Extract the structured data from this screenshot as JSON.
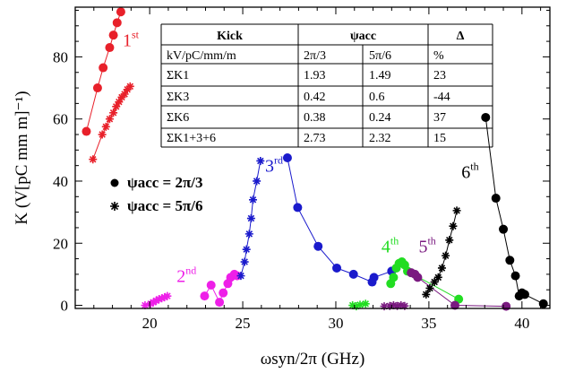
{
  "chart_data": {
    "type": "scatter",
    "xlabel": "ωsyn/2π (GHz)",
    "ylabel": "K (V[pC mm m]⁻¹)",
    "xlim": [
      16,
      41.5
    ],
    "ylim": [
      -1,
      96
    ],
    "xticks": [
      "20",
      "25",
      "30",
      "35",
      "40"
    ],
    "yticks": [
      "0",
      "20",
      "40",
      "60",
      "80"
    ],
    "legend": [
      {
        "marker": "dot",
        "label": "ψacc = 2π/3"
      },
      {
        "marker": "star",
        "label": "ψacc = 5π/6"
      }
    ],
    "mode_labels": [
      {
        "text": "1",
        "sup": "st",
        "color": "#e8202a",
        "x": 18.55,
        "y": 83.5
      },
      {
        "text": "2",
        "sup": "nd",
        "color": "#ee1fe8",
        "x": 21.45,
        "y": 7.5
      },
      {
        "text": "3",
        "sup": "rd",
        "color": "#1a1acc",
        "x": 26.2,
        "y": 43
      },
      {
        "text": "4",
        "sup": "th",
        "color": "#22dd22",
        "x": 32.45,
        "y": 17
      },
      {
        "text": "5",
        "sup": "th",
        "color": "#7a1a80",
        "x": 34.45,
        "y": 17
      },
      {
        "text": "6",
        "sup": "th",
        "color": "#000000",
        "x": 36.75,
        "y": 41
      }
    ],
    "series": [
      {
        "color": "#e8202a",
        "marker": "dot",
        "points": [
          [
            16.6,
            56
          ],
          [
            17.2,
            70
          ],
          [
            17.5,
            76.5
          ],
          [
            17.85,
            83
          ],
          [
            18.05,
            87
          ],
          [
            18.25,
            91
          ],
          [
            18.45,
            94.5
          ]
        ]
      },
      {
        "color": "#e8202a",
        "marker": "star",
        "points": [
          [
            16.95,
            47
          ],
          [
            17.45,
            55
          ],
          [
            17.65,
            57.5
          ],
          [
            17.85,
            60
          ],
          [
            18.05,
            62
          ],
          [
            18.2,
            64
          ],
          [
            18.35,
            65.5
          ],
          [
            18.5,
            67
          ],
          [
            18.65,
            68
          ],
          [
            18.8,
            69.5
          ],
          [
            18.95,
            70.5
          ]
        ]
      },
      {
        "color": "#ee1fe8",
        "marker": "dot",
        "points": [
          [
            22.95,
            3
          ],
          [
            23.3,
            6.5
          ],
          [
            23.75,
            1
          ],
          [
            23.95,
            4
          ],
          [
            24.2,
            7
          ],
          [
            24.35,
            9
          ],
          [
            24.55,
            10
          ],
          [
            24.7,
            9.5
          ]
        ]
      },
      {
        "color": "#ee1fe8",
        "marker": "star",
        "points": [
          [
            19.75,
            0
          ],
          [
            20.05,
            0.5
          ],
          [
            20.2,
            1
          ],
          [
            20.35,
            1.5
          ],
          [
            20.5,
            2
          ],
          [
            20.65,
            2.3
          ],
          [
            20.8,
            2.6
          ],
          [
            20.95,
            3
          ]
        ]
      },
      {
        "color": "#1a1acc",
        "marker": "dot",
        "points": [
          [
            27.4,
            47.5
          ],
          [
            27.95,
            31.5
          ],
          [
            29.05,
            19
          ],
          [
            30.05,
            12
          ],
          [
            30.95,
            10
          ],
          [
            31.95,
            7.5
          ],
          [
            32.05,
            9
          ],
          [
            33.0,
            11
          ]
        ]
      },
      {
        "color": "#1a1acc",
        "marker": "star",
        "points": [
          [
            24.9,
            9.5
          ],
          [
            25.1,
            14
          ],
          [
            25.2,
            18
          ],
          [
            25.35,
            23
          ],
          [
            25.45,
            28
          ],
          [
            25.55,
            34
          ],
          [
            25.75,
            40
          ],
          [
            25.95,
            46.5
          ]
        ]
      },
      {
        "color": "#22dd22",
        "marker": "dot",
        "points": [
          [
            32.95,
            7
          ],
          [
            33.1,
            9
          ],
          [
            33.25,
            12
          ],
          [
            33.4,
            13.5
          ],
          [
            33.55,
            14
          ],
          [
            33.7,
            13
          ],
          [
            33.85,
            11
          ],
          [
            36.6,
            2
          ]
        ]
      },
      {
        "color": "#22dd22",
        "marker": "star",
        "points": [
          [
            30.9,
            0
          ],
          [
            31.1,
            -0.3
          ],
          [
            31.3,
            0.2
          ],
          [
            31.6,
            0.5
          ]
        ]
      },
      {
        "color": "#7a1a80",
        "marker": "dot",
        "points": [
          [
            34.05,
            10.5
          ],
          [
            34.25,
            10
          ],
          [
            34.4,
            9
          ],
          [
            36.4,
            0
          ],
          [
            39.15,
            -0.3
          ]
        ]
      },
      {
        "color": "#7a1a80",
        "marker": "star",
        "points": [
          [
            32.6,
            -0.3
          ],
          [
            32.9,
            -0.2
          ],
          [
            33.1,
            0
          ],
          [
            33.3,
            -0.2
          ],
          [
            33.5,
            0
          ],
          [
            33.7,
            -0.2
          ]
        ]
      },
      {
        "color": "#000000",
        "marker": "dot",
        "points": [
          [
            38.05,
            60.5
          ],
          [
            38.6,
            34.5
          ],
          [
            39.0,
            24.5
          ],
          [
            39.35,
            14.5
          ],
          [
            39.65,
            9.5
          ],
          [
            39.85,
            3
          ],
          [
            40.0,
            4
          ],
          [
            40.15,
            3.5
          ],
          [
            41.15,
            0.5
          ]
        ]
      },
      {
        "color": "#000000",
        "marker": "star",
        "points": [
          [
            34.85,
            3.5
          ],
          [
            35.05,
            5.5
          ],
          [
            35.3,
            7.5
          ],
          [
            35.5,
            9
          ],
          [
            35.7,
            12
          ],
          [
            35.9,
            16
          ],
          [
            36.1,
            21
          ],
          [
            36.3,
            25.5
          ],
          [
            36.5,
            30.5
          ]
        ]
      }
    ]
  },
  "table": {
    "header": [
      "Kick",
      "ψacc",
      "Δ"
    ],
    "units": [
      "kV/pC/mm/m",
      "2π/3",
      "5π/6",
      "%"
    ],
    "rows": [
      [
        "ΣK1",
        "1.93",
        "1.49",
        "23"
      ],
      [
        "ΣK3",
        "0.42",
        "0.6",
        "-44"
      ],
      [
        "ΣK6",
        "0.38",
        "0.24",
        "37"
      ],
      [
        "ΣK1+3+6",
        "2.73",
        "2.32",
        "15"
      ]
    ]
  }
}
